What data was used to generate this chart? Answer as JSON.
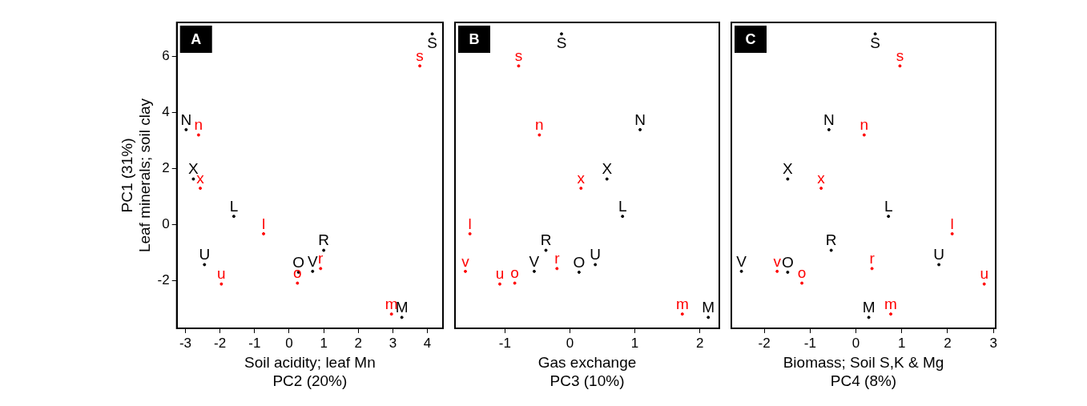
{
  "chart_data": [
    {
      "type": "scatter",
      "title": "A",
      "xlabel": "Soil acidity; leaf Mn\nPC2 (20%)",
      "ylabel": "PC1 (31%)\nLeaf minerals; soil clay",
      "xlim": [
        -3.25,
        4.45
      ],
      "xticks": [
        -3,
        -2,
        -1,
        0,
        1,
        2,
        3,
        4
      ],
      "ylim": [
        -3.7,
        7.2
      ],
      "yticks": [
        -2,
        0,
        2,
        4,
        6
      ],
      "series": [
        {
          "color": "#000000",
          "x": [
            4.14,
            -2.98,
            -2.77,
            -1.6,
            1.0,
            -2.45,
            0.27,
            0.68,
            3.26
          ],
          "values": [
            6.79,
            3.38,
            1.62,
            0.29,
            -0.92,
            -1.43,
            -1.7,
            -1.67,
            -3.31
          ],
          "value_labels": [
            "S",
            "N",
            "X",
            "L",
            "R",
            "U",
            "O",
            "V",
            "M"
          ]
        },
        {
          "color": "#ff0000",
          "x": [
            3.78,
            -2.62,
            -2.57,
            -0.74,
            0.91,
            -1.96,
            0.24,
            2.96
          ],
          "values": [
            5.65,
            3.19,
            1.29,
            -0.33,
            -1.57,
            -2.12,
            -2.09,
            -3.19
          ],
          "value_labels": [
            "s",
            "n",
            "x",
            "l",
            "r",
            "u",
            "o",
            "m"
          ]
        }
      ]
    },
    {
      "type": "scatter",
      "title": "B",
      "xlabel": "Gas exchange\nPC3 (10%)",
      "xlim": [
        -1.77,
        2.3
      ],
      "xticks": [
        -1,
        0,
        1,
        2
      ],
      "ylim": [
        -3.7,
        7.2
      ],
      "yticks": [
        -2,
        0,
        2,
        4,
        6
      ],
      "tick_labels": "x",
      "series": [
        {
          "color": "#000000",
          "x": [
            -0.13,
            1.08,
            0.57,
            0.81,
            -0.37,
            0.39,
            0.14,
            -0.55,
            2.13
          ],
          "values": [
            6.79,
            3.38,
            1.62,
            0.29,
            -0.92,
            -1.43,
            -1.7,
            -1.67,
            -3.31
          ],
          "value_labels": [
            "S",
            "N",
            "X",
            "L",
            "R",
            "U",
            "O",
            "V",
            "M"
          ]
        },
        {
          "color": "#ff0000",
          "x": [
            -0.79,
            -0.47,
            0.17,
            -1.54,
            -0.2,
            -1.08,
            -0.85,
            -1.61,
            1.73
          ],
          "values": [
            5.65,
            3.19,
            1.29,
            -0.33,
            -1.57,
            -2.12,
            -2.09,
            -1.67,
            -3.19
          ],
          "value_labels": [
            "s",
            "n",
            "x",
            "l",
            "r",
            "u",
            "o",
            "v",
            "m"
          ]
        }
      ]
    },
    {
      "type": "scatter",
      "title": "C",
      "xlabel": "Biomass; Soil S,K & Mg\nPC4 (8%)",
      "xlim": [
        -2.72,
        3.05
      ],
      "xticks": [
        -2,
        -1,
        0,
        1,
        2,
        3
      ],
      "ylim": [
        -3.7,
        7.2
      ],
      "yticks": [
        -2,
        0,
        2,
        4,
        6
      ],
      "tick_labels": "x",
      "series": [
        {
          "color": "#000000",
          "x": [
            0.42,
            -0.59,
            -1.49,
            0.71,
            -0.54,
            1.81,
            -1.49,
            -2.5,
            0.28
          ],
          "values": [
            6.79,
            3.38,
            1.62,
            0.29,
            -0.92,
            -1.43,
            -1.7,
            -1.67,
            -3.31
          ],
          "value_labels": [
            "S",
            "N",
            "X",
            "L",
            "R",
            "U",
            "O",
            "V",
            "M"
          ]
        },
        {
          "color": "#ff0000",
          "x": [
            0.96,
            0.18,
            -0.76,
            2.1,
            0.35,
            2.8,
            -1.18,
            -1.72,
            0.76
          ],
          "values": [
            5.65,
            3.19,
            1.29,
            -0.33,
            -1.57,
            -2.12,
            -2.09,
            -1.67,
            -3.19
          ],
          "value_labels": [
            "s",
            "n",
            "x",
            "l",
            "r",
            "u",
            "o",
            "v",
            "m"
          ]
        }
      ]
    }
  ]
}
